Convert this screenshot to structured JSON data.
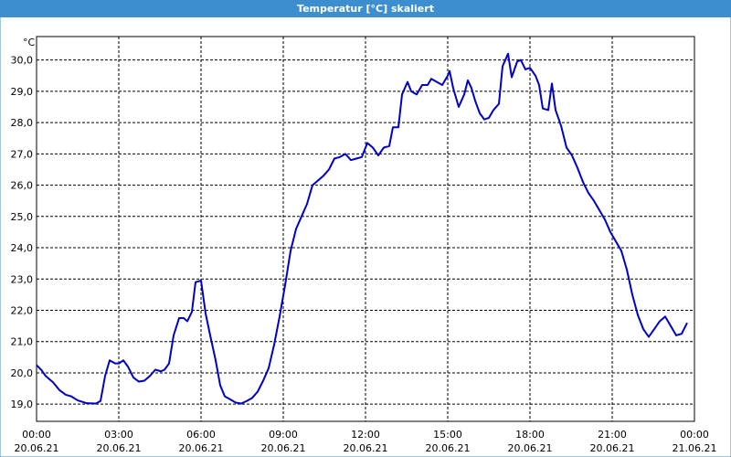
{
  "chart_data": {
    "type": "line",
    "title": "Temperatur [°C] skaliert",
    "ylabel": "°C",
    "ylim": [
      18.45,
      30.75
    ],
    "yticks": [
      {
        "value": 19,
        "label": "19,0"
      },
      {
        "value": 20,
        "label": "20,0"
      },
      {
        "value": 21,
        "label": "21,0"
      },
      {
        "value": 22,
        "label": "22,0"
      },
      {
        "value": 23,
        "label": "23,0"
      },
      {
        "value": 24,
        "label": "24,0"
      },
      {
        "value": 25,
        "label": "25,0"
      },
      {
        "value": 26,
        "label": "26,0"
      },
      {
        "value": 27,
        "label": "27,0"
      },
      {
        "value": 28,
        "label": "28,0"
      },
      {
        "value": 29,
        "label": "29,0"
      },
      {
        "value": 30,
        "label": "30,0"
      }
    ],
    "xlim": [
      "20.06.21 00:00",
      "21.06.21 00:00"
    ],
    "xticks": [
      {
        "value": "20.06.21 00:00",
        "label": [
          "00:00",
          "20.06.21"
        ]
      },
      {
        "value": "20.06.21 03:00",
        "label": [
          "03:00",
          "20.06.21"
        ]
      },
      {
        "value": "20.06.21 06:00",
        "label": [
          "06:00",
          "20.06.21"
        ]
      },
      {
        "value": "20.06.21 09:00",
        "label": [
          "09:00",
          "20.06.21"
        ]
      },
      {
        "value": "20.06.21 12:00",
        "label": [
          "12:00",
          "20.06.21"
        ]
      },
      {
        "value": "20.06.21 15:00",
        "label": [
          "15:00",
          "20.06.21"
        ]
      },
      {
        "value": "20.06.21 18:00",
        "label": [
          "18:00",
          "20.06.21"
        ]
      },
      {
        "value": "20.06.21 21:00",
        "label": [
          "21:00",
          "20.06.21"
        ]
      },
      {
        "value": "21.06.21 00:00",
        "label": [
          "00:00",
          "21.06.21"
        ]
      }
    ],
    "grid": true,
    "color": "#0000c8",
    "x": [
      "20.06.21 00:00",
      "20.06.21 00:10",
      "20.06.21 00:20",
      "20.06.21 00:36",
      "20.06.21 00:50",
      "20.06.21 01:04",
      "20.06.21 01:16",
      "20.06.21 01:30",
      "20.06.21 01:50",
      "20.06.21 02:10",
      "20.06.21 02:20",
      "20.06.21 02:30",
      "20.06.21 02:40",
      "20.06.21 02:52",
      "20.06.21 03:00",
      "20.06.21 03:10",
      "20.06.21 03:20",
      "20.06.21 03:32",
      "20.06.21 03:44",
      "20.06.21 03:56",
      "20.06.21 04:08",
      "20.06.21 04:20",
      "20.06.21 04:32",
      "20.06.21 04:40",
      "20.06.21 04:50",
      "20.06.21 05:00",
      "20.06.21 05:12",
      "20.06.21 05:22",
      "20.06.21 05:30",
      "20.06.21 05:40",
      "20.06.21 05:48",
      "20.06.21 06:00",
      "20.06.21 06:10",
      "20.06.21 06:20",
      "20.06.21 06:32",
      "20.06.21 06:42",
      "20.06.21 06:52",
      "20.06.21 07:04",
      "20.06.21 07:16",
      "20.06.21 07:28",
      "20.06.21 07:40",
      "20.06.21 07:52",
      "20.06.21 08:04",
      "20.06.21 08:16",
      "20.06.21 08:28",
      "20.06.21 08:40",
      "20.06.21 08:52",
      "20.06.21 09:04",
      "20.06.21 09:16",
      "20.06.21 09:28",
      "20.06.21 09:40",
      "20.06.21 09:52",
      "20.06.21 10:04",
      "20.06.21 10:16",
      "20.06.21 10:28",
      "20.06.21 10:40",
      "20.06.21 10:52",
      "20.06.21 11:04",
      "20.06.21 11:16",
      "20.06.21 11:28",
      "20.06.21 11:40",
      "20.06.21 11:52",
      "20.06.21 12:04",
      "20.06.21 12:16",
      "20.06.21 12:28",
      "20.06.21 12:40",
      "20.06.21 12:52",
      "20.06.21 13:00",
      "20.06.21 13:12",
      "20.06.21 13:20",
      "20.06.21 13:32",
      "20.06.21 13:40",
      "20.06.21 13:52",
      "20.06.21 14:04",
      "20.06.21 14:16",
      "20.06.21 14:24",
      "20.06.21 14:36",
      "20.06.21 14:48",
      "20.06.21 15:00",
      "20.06.21 15:04",
      "20.06.21 15:12",
      "20.06.21 15:24",
      "20.06.21 15:36",
      "20.06.21 15:44",
      "20.06.21 15:52",
      "20.06.21 16:00",
      "20.06.21 16:10",
      "20.06.21 16:20",
      "20.06.21 16:30",
      "20.06.21 16:40",
      "20.06.21 16:52",
      "20.06.21 17:00",
      "20.06.21 17:12",
      "20.06.21 17:20",
      "20.06.21 17:32",
      "20.06.21 17:40",
      "20.06.21 17:50",
      "20.06.21 18:00",
      "20.06.21 18:12",
      "20.06.21 18:20",
      "20.06.21 18:28",
      "20.06.21 18:40",
      "20.06.21 18:48",
      "20.06.21 18:56",
      "20.06.21 19:08",
      "20.06.21 19:20",
      "20.06.21 19:32",
      "20.06.21 19:44",
      "20.06.21 19:56",
      "20.06.21 20:08",
      "20.06.21 20:20",
      "20.06.21 20:32",
      "20.06.21 20:44",
      "20.06.21 20:56",
      "20.06.21 21:08",
      "20.06.21 21:20",
      "20.06.21 21:32",
      "20.06.21 21:44",
      "20.06.21 21:56",
      "20.06.21 22:08",
      "20.06.21 22:20",
      "20.06.21 22:32",
      "20.06.21 22:44",
      "20.06.21 22:56",
      "20.06.21 23:08",
      "20.06.21 23:20",
      "20.06.21 23:32",
      "20.06.21 23:44"
    ],
    "values": [
      20.25,
      20.1,
      19.9,
      19.7,
      19.45,
      19.3,
      19.25,
      19.12,
      19.03,
      19.02,
      19.1,
      19.9,
      20.4,
      20.3,
      20.3,
      20.4,
      20.2,
      19.85,
      19.72,
      19.75,
      19.9,
      20.1,
      20.05,
      20.1,
      20.3,
      21.2,
      21.75,
      21.75,
      21.65,
      21.95,
      22.9,
      22.95,
      21.9,
      21.2,
      20.4,
      19.6,
      19.25,
      19.15,
      19.05,
      19.02,
      19.1,
      19.2,
      19.4,
      19.75,
      20.15,
      20.9,
      21.8,
      22.8,
      23.9,
      24.6,
      25.0,
      25.4,
      26.0,
      26.15,
      26.3,
      26.5,
      26.85,
      26.9,
      27.0,
      26.8,
      26.85,
      26.9,
      27.35,
      27.2,
      26.95,
      27.2,
      27.25,
      27.85,
      27.85,
      28.9,
      29.3,
      29.0,
      28.9,
      29.2,
      29.2,
      29.4,
      29.3,
      29.2,
      29.5,
      29.65,
      29.1,
      28.5,
      28.9,
      29.35,
      29.1,
      28.7,
      28.3,
      28.1,
      28.15,
      28.4,
      28.6,
      29.8,
      30.2,
      29.45,
      29.95,
      30.0,
      29.7,
      29.75,
      29.5,
      29.2,
      28.45,
      28.4,
      29.25,
      28.4,
      27.9,
      27.2,
      26.95,
      26.55,
      26.1,
      25.75,
      25.5,
      25.2,
      24.9,
      24.5,
      24.2,
      23.9,
      23.3,
      22.5,
      21.85,
      21.4,
      21.15,
      21.4,
      21.65,
      21.8,
      21.5,
      21.2,
      21.25,
      21.6
    ]
  }
}
